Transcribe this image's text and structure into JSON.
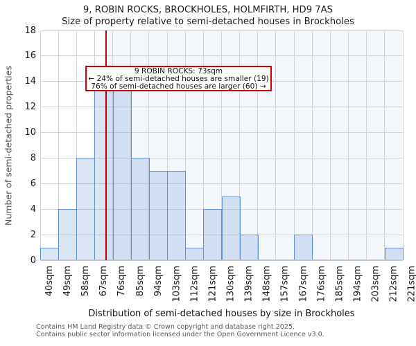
{
  "title": "9, ROBIN ROCKS, BROCKHOLES, HOLMFIRTH, HD9 7AS",
  "subtitle": "Size of property relative to semi-detached houses in Brockholes",
  "annotation": {
    "line1": "9 ROBIN ROCKS: 73sqm",
    "line2": "← 24% of semi-detached houses are smaller (19)",
    "line3": "76% of semi-detached houses are larger (60) →"
  },
  "chart_data": {
    "type": "bar",
    "subtype": "histogram",
    "title": "9, ROBIN ROCKS, BROCKHOLES, HOLMFIRTH, HD9 7AS",
    "subtitle": "Size of property relative to semi-detached houses in Brockholes",
    "xlabel": "Distribution of semi-detached houses by size in Brockholes",
    "ylabel": "Number of semi-detached properties",
    "bin_edges_sqm": [
      40,
      49,
      58,
      67,
      76,
      85,
      94,
      103,
      112,
      121,
      130,
      139,
      148,
      157,
      167,
      176,
      185,
      194,
      203,
      212,
      221
    ],
    "x_tick_labels": [
      "40sqm",
      "49sqm",
      "58sqm",
      "67sqm",
      "76sqm",
      "85sqm",
      "94sqm",
      "103sqm",
      "112sqm",
      "121sqm",
      "130sqm",
      "139sqm",
      "148sqm",
      "157sqm",
      "167sqm",
      "176sqm",
      "185sqm",
      "194sqm",
      "203sqm",
      "212sqm",
      "221sqm"
    ],
    "values": [
      1,
      4,
      8,
      15,
      14,
      8,
      7,
      7,
      1,
      4,
      5,
      2,
      0,
      0,
      2,
      0,
      0,
      0,
      0,
      1
    ],
    "ylim": [
      0,
      18
    ],
    "ytick_step": 2,
    "grid": true,
    "legend": "none",
    "marker": {
      "label": "9 ROBIN ROCKS",
      "value_sqm": 73,
      "smaller_pct": 24,
      "smaller_count": 19,
      "larger_pct": 76,
      "larger_count": 60
    },
    "colors": {
      "bar_fill": "rgba(105,145,210,0.24)",
      "bar_edge": "#5e8fd4",
      "marker_line": "#bb0000",
      "annotation_border": "#cc0000",
      "region_smaller_bg": "#ffffff",
      "region_larger_bg": "#f3f6fb",
      "gridline": "#d3d3d3"
    }
  },
  "footer": {
    "line1": "Contains HM Land Registry data © Crown copyright and database right 2025.",
    "line2": "Contains public sector information licensed under the Open Government Licence v3.0."
  }
}
